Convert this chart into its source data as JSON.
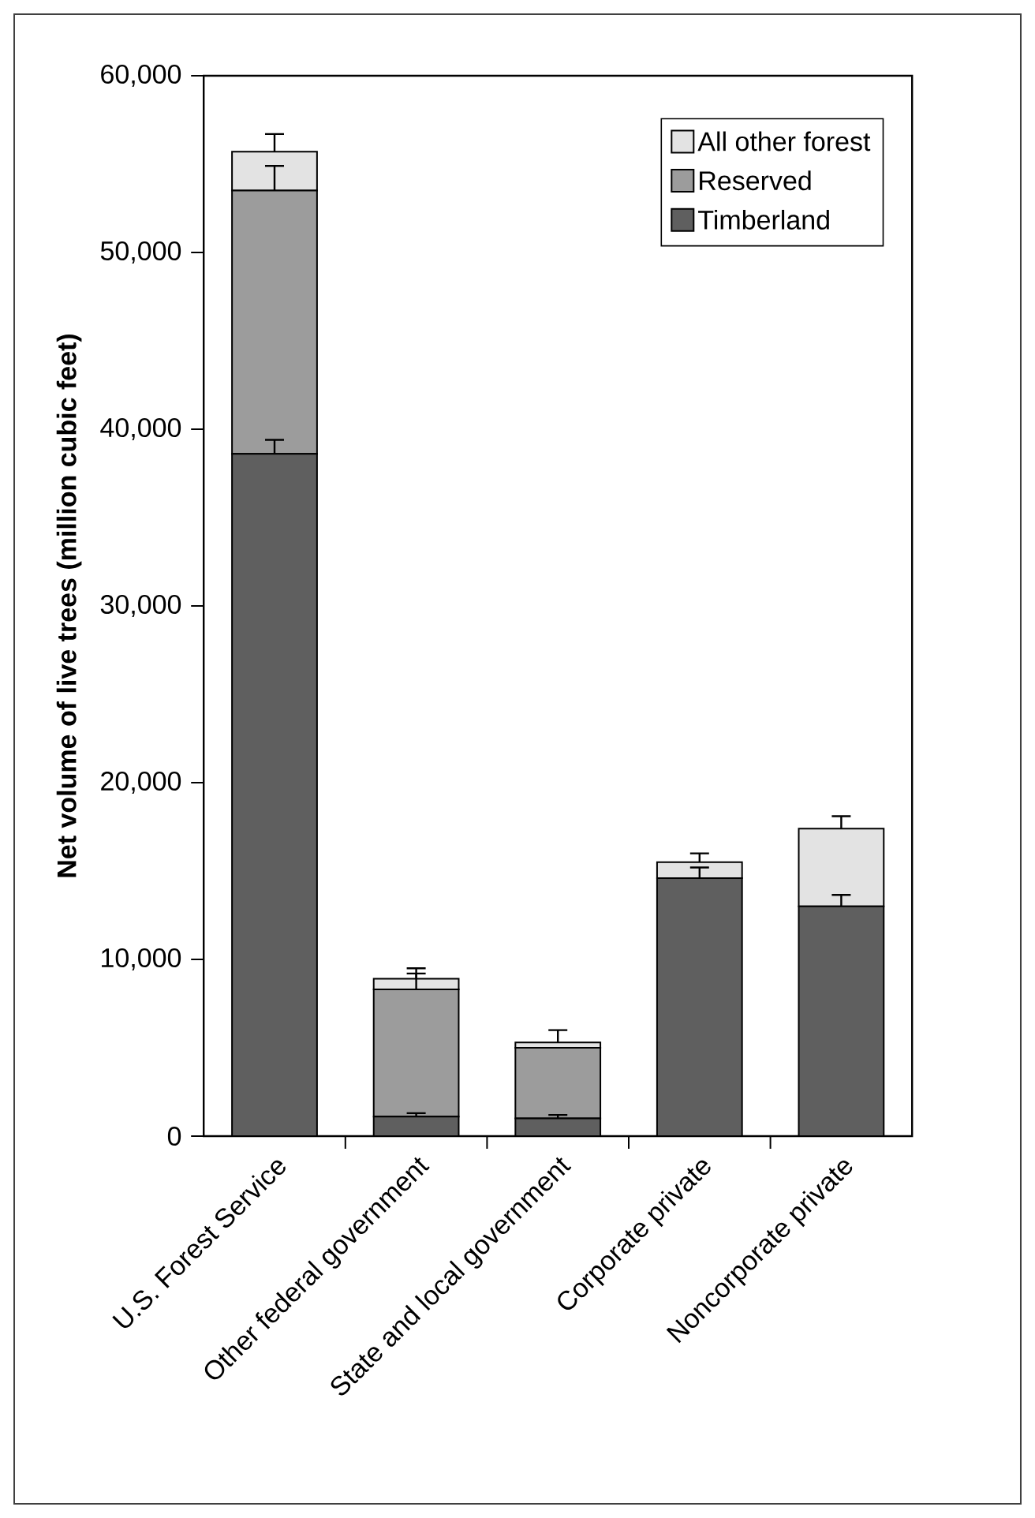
{
  "chart_data": {
    "type": "bar",
    "stacked": true,
    "ylabel": "Net volume of live trees (million cubic feet)",
    "categories": [
      "U.S. Forest Service",
      "Other federal government",
      "State and local government",
      "Corporate private",
      "Noncorporate private"
    ],
    "series": [
      {
        "name": "Timberland",
        "color": "#5f5f5f",
        "values": [
          38600,
          1100,
          1000,
          14600,
          13000
        ],
        "errors": [
          [
            38600,
            39400
          ],
          [
            1100,
            1300
          ],
          [
            1000,
            1200
          ],
          [
            14600,
            15200
          ],
          [
            13000,
            13650
          ]
        ]
      },
      {
        "name": "Reserved",
        "color": "#9c9c9c",
        "values": [
          14900,
          7200,
          4000,
          0,
          0
        ],
        "errors": [
          [
            53500,
            54900
          ],
          [
            8300,
            9200
          ],
          null,
          null,
          null
        ]
      },
      {
        "name": "All other forest",
        "color": "#e3e3e3",
        "values": [
          2200,
          600,
          300,
          900,
          4400
        ],
        "errors": [
          [
            55700,
            56700
          ],
          [
            8900,
            9500
          ],
          [
            5300,
            6000
          ],
          [
            15500,
            16000
          ],
          [
            17400,
            18100
          ]
        ]
      }
    ],
    "ylim": [
      0,
      60000
    ],
    "yticks": [
      {
        "value": 0,
        "label": "0"
      },
      {
        "value": 10000,
        "label": "10,000"
      },
      {
        "value": 20000,
        "label": "20,000"
      },
      {
        "value": 30000,
        "label": "30,000"
      },
      {
        "value": 40000,
        "label": "40,000"
      },
      {
        "value": 50000,
        "label": "50,000"
      },
      {
        "value": 60000,
        "label": "60,000"
      }
    ],
    "legend": "top right",
    "grid": false
  }
}
